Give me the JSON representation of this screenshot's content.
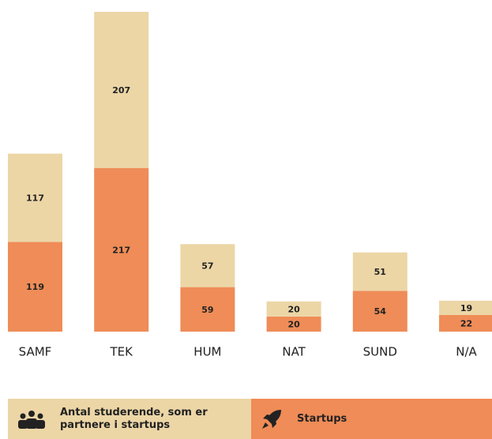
{
  "chart_data": {
    "type": "stacked_bar",
    "categories": [
      "SAMF",
      "TEK",
      "HUM",
      "NAT",
      "SUND",
      "N/A"
    ],
    "series": [
      {
        "name": "Startups",
        "color": "#ef8c57",
        "values": [
          119,
          217,
          59,
          20,
          54,
          22
        ]
      },
      {
        "name": "Antal studerende, som er partnere i startups",
        "color": "#ecd6a6",
        "values": [
          117,
          207,
          57,
          20,
          51,
          19
        ]
      }
    ]
  }
}
